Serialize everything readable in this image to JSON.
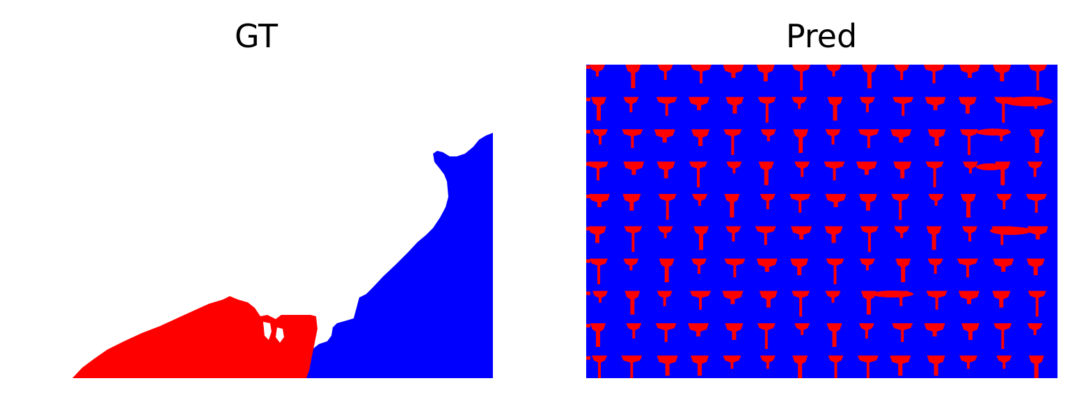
{
  "titles": {
    "gt": "GT",
    "pred": "Pred"
  },
  "colors": {
    "background": "#ffffff",
    "class_red": "#ff0000",
    "class_blue": "#0000ff",
    "class_white": "#ffffff"
  },
  "pred_pattern": {
    "rows": 10,
    "cols": 14
  }
}
